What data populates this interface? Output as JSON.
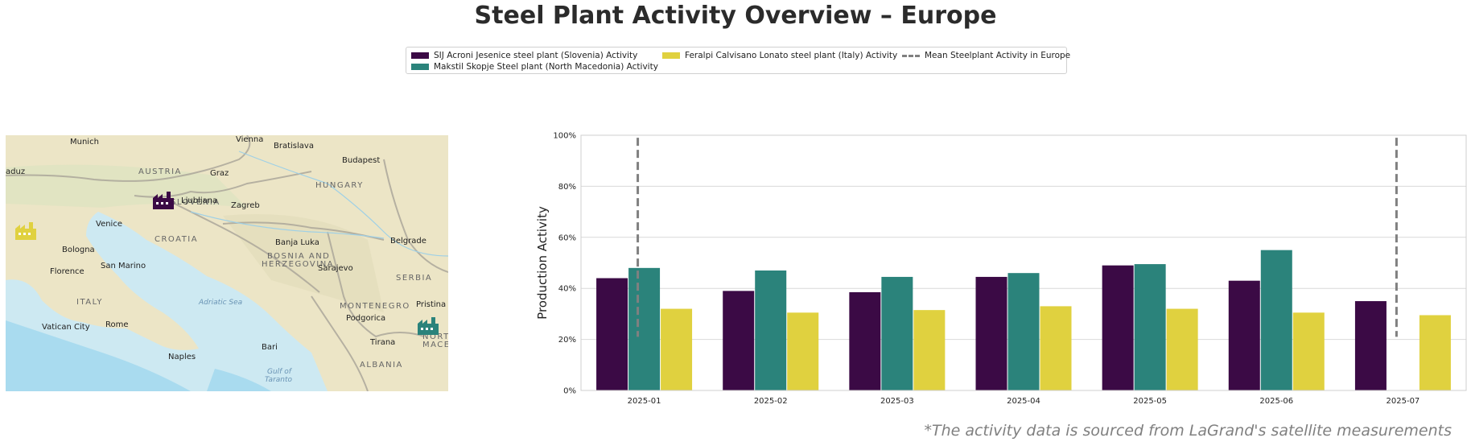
{
  "title": "Steel Plant Activity Overview – Europe",
  "footnote": "*The activity data is sourced from LaGrand's satellite measurements",
  "legend": {
    "items": [
      {
        "label": "SIJ Acroni Jesenice steel plant (Slovenia) Activity",
        "color": "#3b0a45"
      },
      {
        "label": "Makstil Skopje Steel plant (North Macedonia) Activity",
        "color": "#2b837b"
      },
      {
        "label": "Feralpi Calvisano Lonato steel plant (Italy) Activity",
        "color": "#e0d13f"
      },
      {
        "label": "Mean Steelplant Activity in Europe",
        "color": "#808080"
      }
    ]
  },
  "map": {
    "cities": [
      {
        "name": "Munich"
      },
      {
        "name": "Vienna"
      },
      {
        "name": "Bratislava"
      },
      {
        "name": "Budapest"
      },
      {
        "name": "Graz"
      },
      {
        "name": "Ljubljana"
      },
      {
        "name": "Zagreb"
      },
      {
        "name": "Venice"
      },
      {
        "name": "Bologna"
      },
      {
        "name": "San Marino"
      },
      {
        "name": "Florence"
      },
      {
        "name": "Banja Luka"
      },
      {
        "name": "Sarajevo"
      },
      {
        "name": "Belgrade"
      },
      {
        "name": "Podgorica"
      },
      {
        "name": "Pristina"
      },
      {
        "name": "Rome"
      },
      {
        "name": "Vatican City"
      },
      {
        "name": "Naples"
      },
      {
        "name": "Bari"
      },
      {
        "name": "Tirana"
      },
      {
        "name": "aduz"
      }
    ],
    "countries": [
      "AUSTRIA",
      "HUNGARY",
      "SLOVENIA",
      "CROATIA",
      "BOSNIA AND",
      "HERZEGOVINA",
      "SERBIA",
      "ITALY",
      "MONTENEGRO",
      "ALBANIA",
      "NORTH",
      "MACEDO"
    ],
    "seas": [
      "Adriatic Sea",
      "Gulf of",
      "Taranto"
    ],
    "plant_icon": "factory-icon"
  },
  "chart_data": {
    "type": "bar",
    "categories": [
      "2025-01",
      "2025-02",
      "2025-03",
      "2025-04",
      "2025-05",
      "2025-06",
      "2025-07"
    ],
    "series": [
      {
        "name": "SIJ Acroni Jesenice steel plant (Slovenia) Activity",
        "color": "#3b0a45",
        "values": [
          44,
          39,
          38.5,
          44.5,
          49,
          43,
          35
        ]
      },
      {
        "name": "Makstil Skopje Steel plant (North Macedonia) Activity",
        "color": "#2b837b",
        "values": [
          48,
          47,
          44.5,
          46,
          49.5,
          55,
          null
        ]
      },
      {
        "name": "Feralpi Calvisano Lonato steel plant (Italy) Activity",
        "color": "#e0d13f",
        "values": [
          32,
          30.5,
          31.5,
          33,
          32,
          30.5,
          29.5
        ]
      }
    ],
    "mean_markers": {
      "name": "Mean Steelplant Activity in Europe",
      "categories": [
        "2025-01",
        "2025-07"
      ],
      "range": [
        21,
        99
      ]
    },
    "ylabel": "Production Activity",
    "xlabel": "",
    "ylim": [
      0,
      100
    ],
    "yticks": [
      0,
      20,
      40,
      60,
      80,
      100
    ],
    "ytick_labels": [
      "0%",
      "20%",
      "40%",
      "60%",
      "80%",
      "100%"
    ],
    "grid": true
  }
}
